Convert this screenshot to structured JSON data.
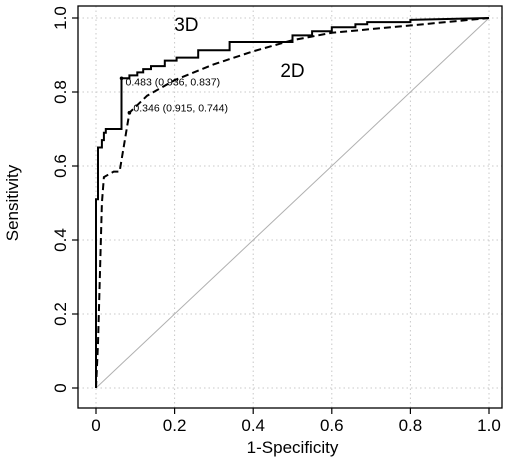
{
  "chart_data": {
    "type": "line",
    "title": "",
    "xlabel": "1-Specificity",
    "ylabel": "Sensitivity",
    "xlim": [
      0,
      1
    ],
    "ylim": [
      0,
      1
    ],
    "grid": true,
    "xticks": [
      "0",
      "0.2",
      "0.4",
      "0.6",
      "0.8",
      "1.0"
    ],
    "yticks": [
      "0",
      "0.2",
      "0.4",
      "0.6",
      "0.8",
      "1.0"
    ],
    "series": [
      {
        "name": "3D",
        "style": "solid",
        "color": "#000000",
        "x": [
          0,
          0,
          0.005,
          0.005,
          0.015,
          0.015,
          0.02,
          0.02,
          0.025,
          0.025,
          0.045,
          0.045,
          0.065,
          0.065,
          0.085,
          0.085,
          0.105,
          0.105,
          0.12,
          0.12,
          0.14,
          0.14,
          0.175,
          0.175,
          0.205,
          0.205,
          0.26,
          0.26,
          0.34,
          0.34,
          0.5,
          0.5,
          0.55,
          0.55,
          0.6,
          0.6,
          0.66,
          0.66,
          0.69,
          0.69,
          0.8,
          0.8,
          1.0
        ],
        "y": [
          0,
          0.51,
          0.51,
          0.65,
          0.65,
          0.67,
          0.67,
          0.69,
          0.69,
          0.7,
          0.7,
          0.7,
          0.7,
          0.837,
          0.837,
          0.845,
          0.845,
          0.853,
          0.853,
          0.862,
          0.862,
          0.87,
          0.87,
          0.885,
          0.885,
          0.893,
          0.893,
          0.913,
          0.913,
          0.935,
          0.935,
          0.953,
          0.953,
          0.964,
          0.964,
          0.975,
          0.975,
          0.983,
          0.983,
          0.989,
          0.989,
          0.995,
          1.0
        ]
      },
      {
        "name": "2D",
        "style": "dashed",
        "color": "#000000",
        "x": [
          0,
          0.005,
          0.015,
          0.02,
          0.045,
          0.045,
          0.06,
          0.085,
          0.085,
          0.13,
          0.13,
          0.2,
          0.2,
          0.3,
          0.3,
          0.4,
          0.4,
          0.5,
          0.5,
          0.55,
          0.55,
          0.6,
          0.6,
          0.7,
          0.7,
          0.85,
          0.85,
          1.0
        ],
        "y": [
          0,
          0.12,
          0.5,
          0.57,
          0.585,
          0.585,
          0.585,
          0.744,
          0.744,
          0.79,
          0.79,
          0.832,
          0.832,
          0.875,
          0.875,
          0.91,
          0.91,
          0.94,
          0.94,
          0.95,
          0.95,
          0.96,
          0.96,
          0.97,
          0.97,
          0.985,
          0.985,
          1.0
        ]
      },
      {
        "name": "",
        "style": "reference",
        "color": "#b0b0b0",
        "x": [
          0,
          1
        ],
        "y": [
          0,
          1
        ]
      }
    ],
    "series_labels": [
      {
        "text": "3D",
        "x": 0.23,
        "y": 0.965
      },
      {
        "text": "2D",
        "x": 0.5,
        "y": 0.84
      }
    ],
    "annotations": [
      {
        "text": "0.483 (0.936, 0.837)",
        "x": 0.065,
        "y": 0.837
      },
      {
        "text": "0.346 (0.915, 0.744)",
        "x": 0.085,
        "y": 0.744
      }
    ]
  }
}
